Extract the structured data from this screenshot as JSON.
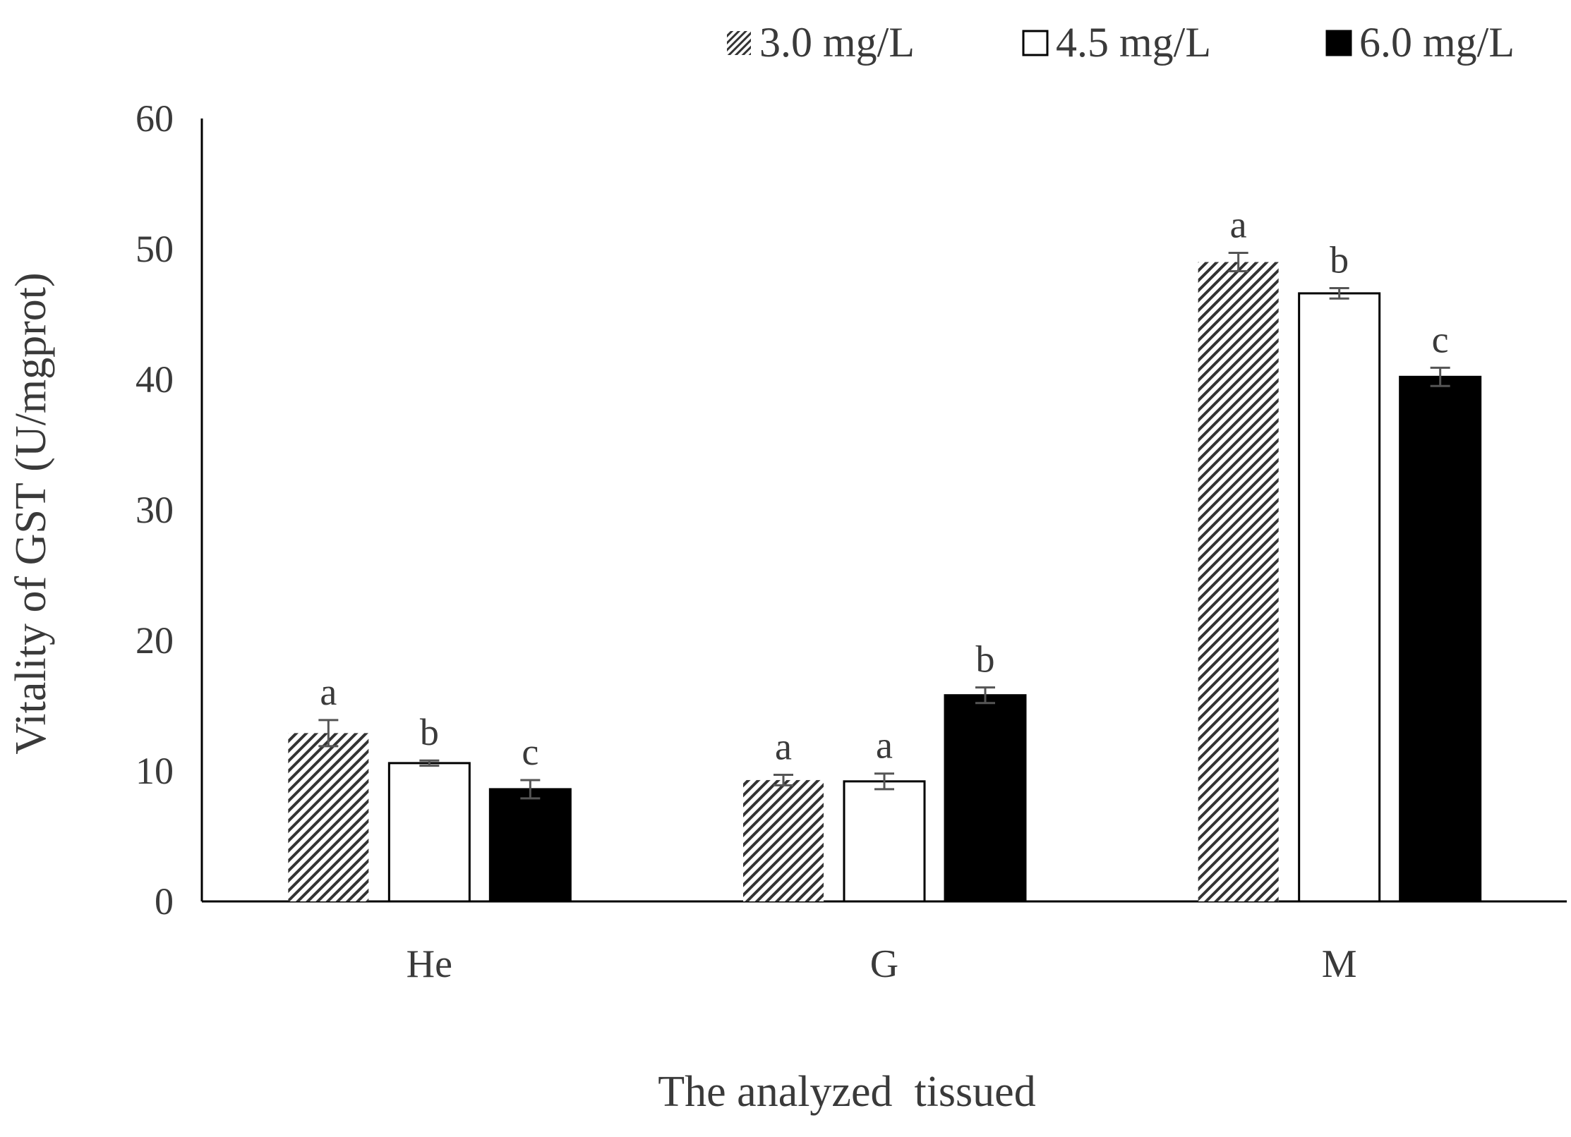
{
  "chart_data": {
    "type": "bar",
    "title": "",
    "xlabel": "The analyzed  tissued",
    "ylabel": "Vitality of GST (U/mgprot)",
    "categories": [
      "He",
      "G",
      "M"
    ],
    "ylim": [
      0,
      60
    ],
    "yticks": [
      0,
      10,
      20,
      30,
      40,
      50,
      60
    ],
    "grid": false,
    "legend_position": "top-right",
    "series": [
      {
        "name": "3.0 mg/L",
        "fill": "hatched",
        "color": "#333333",
        "values": [
          12.9,
          9.3,
          49.0
        ],
        "errors": [
          1.0,
          0.4,
          0.7
        ],
        "significance": [
          "a",
          "a",
          "a"
        ]
      },
      {
        "name": "4.5 mg/L",
        "fill": "white",
        "color": "#ffffff",
        "values": [
          10.6,
          9.2,
          46.6
        ],
        "errors": [
          0.2,
          0.6,
          0.4
        ],
        "significance": [
          "b",
          "a",
          "b"
        ]
      },
      {
        "name": "6.0 mg/L",
        "fill": "black",
        "color": "#000000",
        "values": [
          8.6,
          15.8,
          40.2
        ],
        "errors": [
          0.7,
          0.6,
          0.7
        ],
        "significance": [
          "c",
          "b",
          "c"
        ]
      }
    ]
  }
}
